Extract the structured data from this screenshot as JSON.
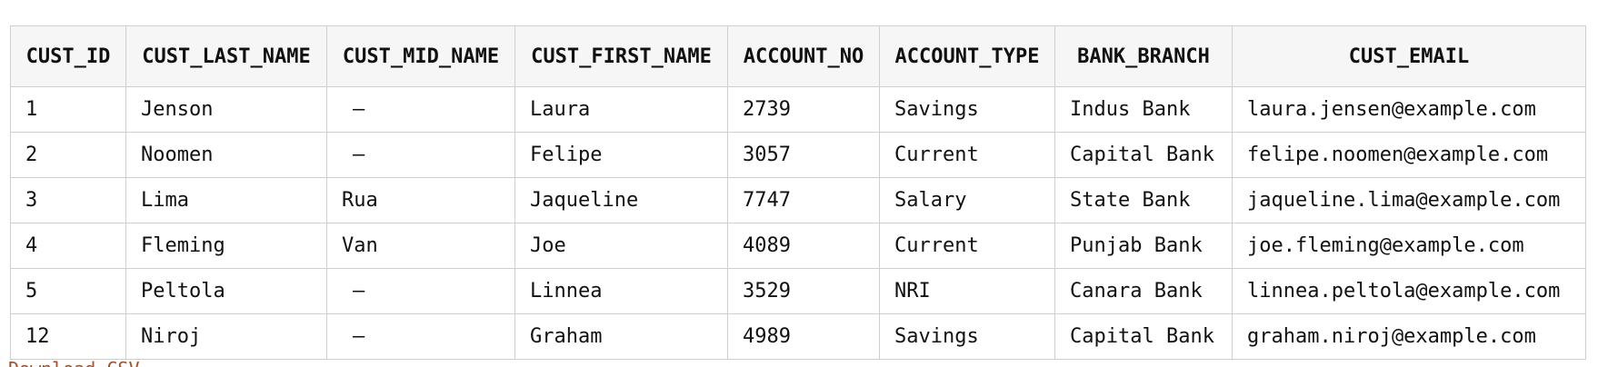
{
  "table": {
    "headers": [
      "CUST_ID",
      "CUST_LAST_NAME",
      "CUST_MID_NAME",
      "CUST_FIRST_NAME",
      "ACCOUNT_NO",
      "ACCOUNT_TYPE",
      "BANK_BRANCH",
      "CUST_EMAIL"
    ],
    "rows": [
      [
        "1",
        "Jenson",
        "–",
        "Laura",
        "2739",
        "Savings",
        "Indus Bank",
        "laura.jensen@example.com"
      ],
      [
        "2",
        "Noomen",
        "–",
        "Felipe",
        "3057",
        "Current",
        "Capital Bank",
        "felipe.noomen@example.com"
      ],
      [
        "3",
        "Lima",
        "Rua",
        "Jaqueline",
        "7747",
        "Salary",
        "State Bank",
        "jaqueline.lima@example.com"
      ],
      [
        "4",
        "Fleming",
        "Van",
        "Joe",
        "4089",
        "Current",
        "Punjab Bank",
        "joe.fleming@example.com"
      ],
      [
        "5",
        "Peltola",
        "–",
        "Linnea",
        "3529",
        "NRI",
        "Canara Bank",
        "linnea.peltola@example.com"
      ],
      [
        "12",
        "Niroj",
        "–",
        "Graham",
        "4989",
        "Savings",
        "Capital Bank",
        "graham.niroj@example.com"
      ]
    ]
  },
  "download_link": "Download CSV",
  "colors": {
    "header_bg": "#f6f6f6",
    "border": "#cfcfcf",
    "link": "#a0522d"
  }
}
